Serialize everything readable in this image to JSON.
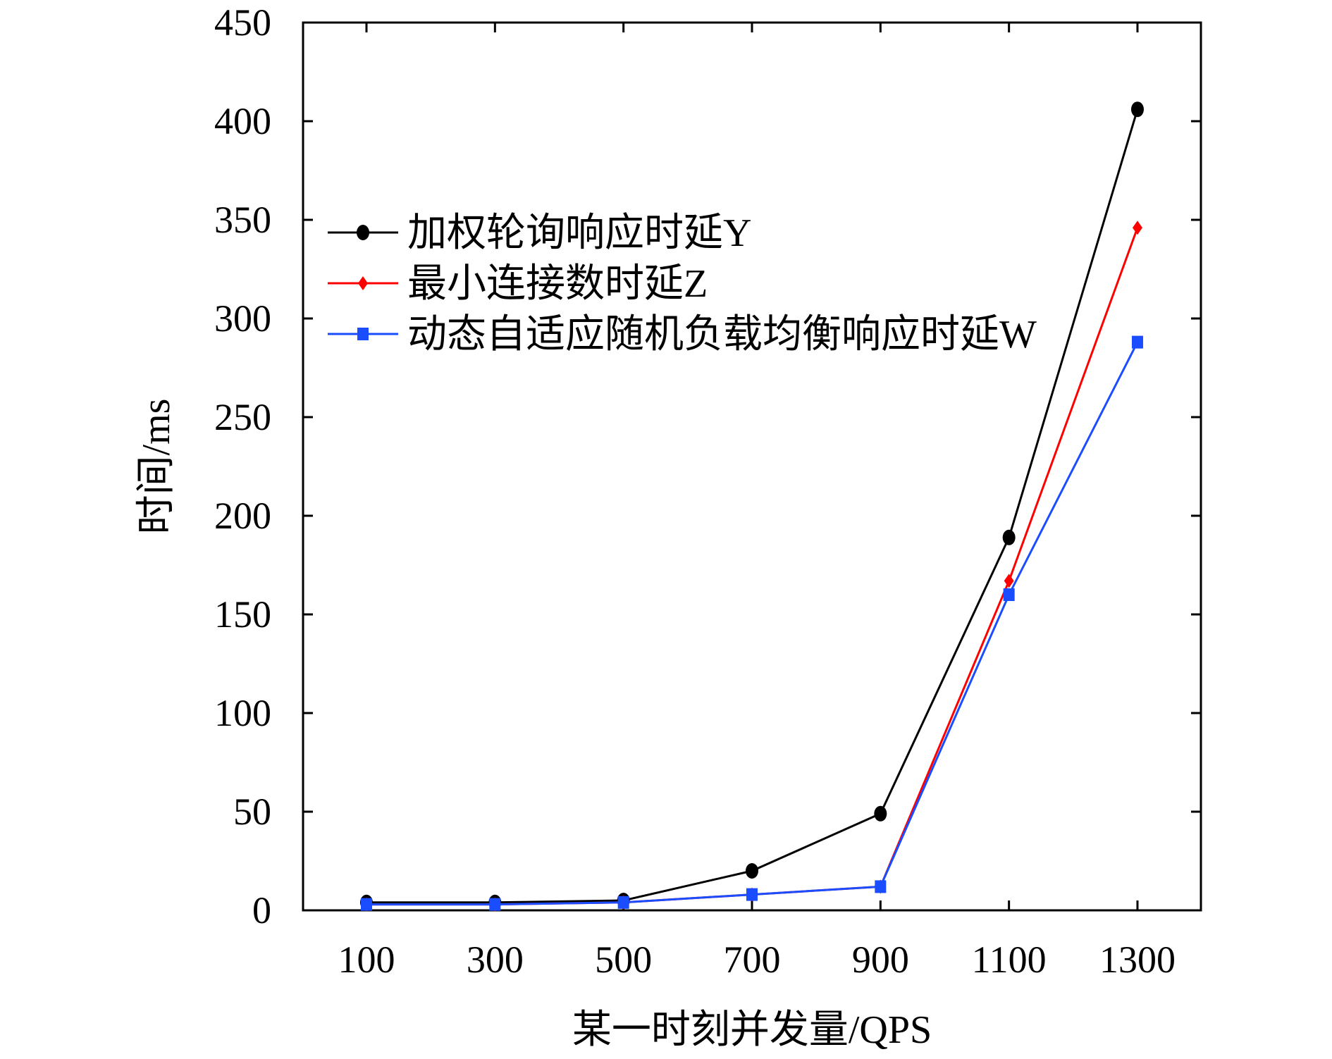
{
  "chart_data": {
    "type": "line",
    "title": "",
    "xlabel": "某一时刻并发量/QPS",
    "ylabel": "时间/ms",
    "x": [
      100,
      300,
      500,
      700,
      900,
      1100,
      1300
    ],
    "x_ticks": [
      "100",
      "300",
      "500",
      "700",
      "900",
      "1100",
      "1300"
    ],
    "y_ticks": [
      "0",
      "50",
      "100",
      "150",
      "200",
      "250",
      "300",
      "350",
      "400",
      "450"
    ],
    "ylim": [
      0,
      450
    ],
    "grid": false,
    "legend_position": "top-left",
    "series": [
      {
        "name": "加权轮询响应时延Y",
        "color": "#000000",
        "marker": "circle",
        "values": [
          4,
          4,
          5,
          20,
          49,
          189,
          406
        ]
      },
      {
        "name": "最小连接数时延Z",
        "color": "#ff0000",
        "marker": "diamond",
        "values": [
          3,
          3,
          4,
          8,
          12,
          167,
          346
        ]
      },
      {
        "name": "动态自适应随机负载均衡响应时延W",
        "color": "#1a4dff",
        "marker": "square",
        "values": [
          3,
          3,
          4,
          8,
          12,
          160,
          288
        ]
      }
    ]
  }
}
